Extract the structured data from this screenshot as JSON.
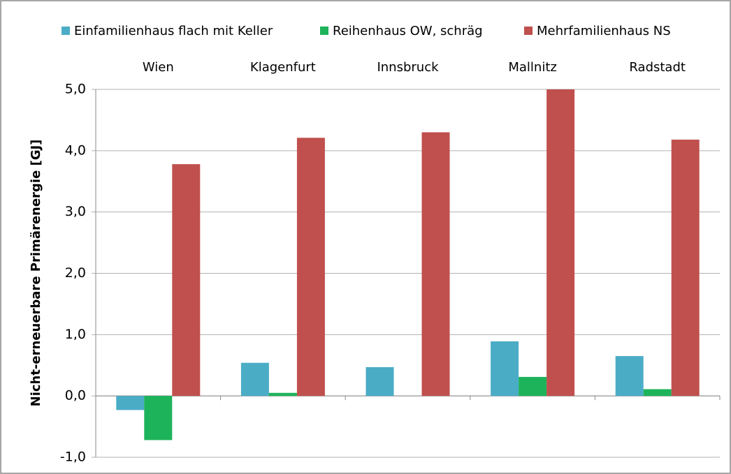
{
  "chart_data": {
    "type": "bar",
    "ylabel": "Nicht-erneuerbare Primärenergie [GJ]",
    "categories": [
      "Wien",
      "Klagenfurt",
      "Innsbruck",
      "Mallnitz",
      "Radstadt"
    ],
    "series": [
      {
        "name": "Einfamilienhaus flach mit Keller",
        "color": "#4bacc6",
        "values": [
          -0.23,
          0.54,
          0.47,
          0.89,
          0.65
        ]
      },
      {
        "name": "Reihenhaus OW, schräg",
        "color": "#1db35a",
        "values": [
          -0.72,
          0.05,
          0,
          0.31,
          0.11
        ]
      },
      {
        "name": "Mehrfamilienhaus NS",
        "color": "#c0504d",
        "values": [
          3.78,
          4.21,
          4.3,
          5.0,
          4.18
        ]
      }
    ],
    "ylim": [
      -1,
      5
    ],
    "yticks": [
      {
        "value": -1,
        "label": "-1,0"
      },
      {
        "value": 0,
        "label": "0,0"
      },
      {
        "value": 1,
        "label": "1,0"
      },
      {
        "value": 2,
        "label": "2,0"
      },
      {
        "value": 3,
        "label": "3,0"
      },
      {
        "value": 4,
        "label": "4,0"
      },
      {
        "value": 5,
        "label": "5,0"
      }
    ],
    "grid": true,
    "legend": "top"
  }
}
